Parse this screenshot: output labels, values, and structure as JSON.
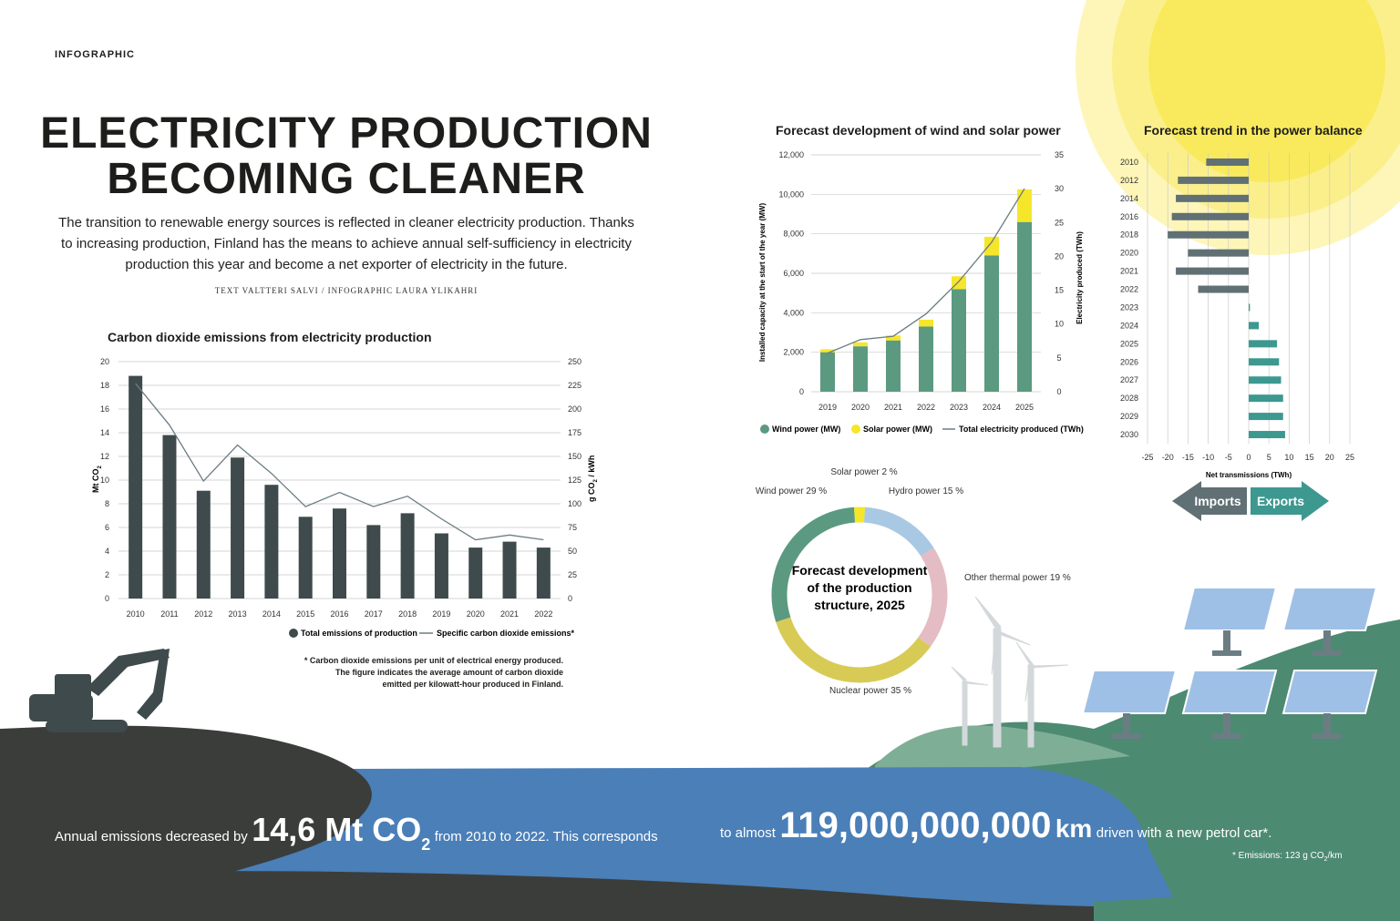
{
  "header": {
    "section_tag": "INFOGRAPHIC",
    "title_line1": "ELECTRICITY PRODUCTION",
    "title_line2": "BECOMING CLEANER",
    "intro": "The transition to renewable energy sources is reflected in cleaner electricity production. Thanks to increasing production, Finland has the means to achieve annual self-sufficiency in electricity production this year and become a net exporter of electricity in the future.",
    "credits": "TEXT VALTTERI SALVI / INFOGRAPHIC LAURA YLIKAHRI"
  },
  "colors": {
    "dark_bar": "#3e4a4b",
    "line": "#6b7d83",
    "wind": "#5b9a80",
    "solar": "#f6e629",
    "hydro": "#a9c8e4",
    "thermal": "#e3bcc4",
    "nuclear": "#d8cb55",
    "imports": "#607074",
    "exports": "#3d9890",
    "water": "#4a7fb8",
    "hill_dark": "#3b3d3b",
    "hill_green": "#4d8a72",
    "sun": "#f8ec6a"
  },
  "chart_data": [
    {
      "type": "bar",
      "title": "Carbon dioxide emissions from electricity production",
      "ylabel": "Mt CO",
      "ylabel_sub": "2",
      "y2label": "g CO",
      "y2label_sub": "2",
      "y2label_tail": "/ kWh",
      "categories": [
        "2010",
        "2011",
        "2012",
        "2013",
        "2014",
        "2015",
        "2016",
        "2017",
        "2018",
        "2019",
        "2020",
        "2021",
        "2022"
      ],
      "series": [
        {
          "name": "Total emissions of production",
          "kind": "bar",
          "axis": "left",
          "values": [
            18.8,
            13.8,
            9.1,
            11.9,
            9.6,
            6.9,
            7.6,
            6.2,
            7.2,
            5.5,
            4.3,
            4.8,
            4.3
          ]
        },
        {
          "name": "Specific carbon dioxide emissions*",
          "kind": "line",
          "axis": "right",
          "values": [
            227,
            183,
            124,
            162,
            132,
            97,
            112,
            97,
            108,
            84,
            62,
            67,
            62
          ]
        }
      ],
      "ylim": [
        0,
        20
      ],
      "yticks": [
        0,
        2,
        4,
        6,
        8,
        10,
        12,
        14,
        16,
        18,
        20
      ],
      "y2lim": [
        0,
        250
      ],
      "y2ticks": [
        0,
        25,
        50,
        75,
        100,
        125,
        150,
        175,
        200,
        225,
        250
      ],
      "grid": true,
      "legend": "bottom-right",
      "footnote": [
        "* Carbon dioxide emissions per unit of electrical energy produced.",
        "The figure indicates the average amount of carbon dioxide",
        "emitted per kilowatt-hour produced in Finland."
      ]
    },
    {
      "type": "bar",
      "title": "Forecast development of wind and solar power",
      "ylabel": "Installed capacity at the start of the year (MW)",
      "y2label": "Electricity produced (TWh)",
      "categories": [
        "2019",
        "2020",
        "2021",
        "2022",
        "2023",
        "2024",
        "2025"
      ],
      "series": [
        {
          "name": "Wind power (MW)",
          "kind": "stacked-bar",
          "axis": "left",
          "values": [
            2000,
            2300,
            2600,
            3300,
            5200,
            6900,
            8600
          ]
        },
        {
          "name": "Solar power (MW)",
          "kind": "stacked-bar",
          "axis": "left",
          "values": [
            150,
            200,
            250,
            350,
            650,
            950,
            1650
          ]
        },
        {
          "name": "Total electricity produced (TWh)",
          "kind": "line",
          "axis": "right",
          "values": [
            5.7,
            7.7,
            8.2,
            11.5,
            16.3,
            22.1,
            30
          ]
        }
      ],
      "ylim": [
        0,
        12000
      ],
      "yticks": [
        0,
        2000,
        4000,
        6000,
        8000,
        10000,
        12000
      ],
      "ytick_labels": [
        "0",
        "2,000",
        "4,000",
        "6,000",
        "8,000",
        "10,000",
        "12,000"
      ],
      "y2lim": [
        0,
        35
      ],
      "y2ticks": [
        0,
        5,
        10,
        15,
        20,
        25,
        30,
        35
      ],
      "grid": true,
      "legend": "bottom"
    },
    {
      "type": "bar",
      "orientation": "horizontal",
      "title": "Forecast trend in the power balance",
      "xlabel": "Net transmissions (TWh)",
      "categories": [
        "2010",
        "2012",
        "2014",
        "2016",
        "2018",
        "2020",
        "2021",
        "2022",
        "2023",
        "2024",
        "2025",
        "2026",
        "2027",
        "2028",
        "2029",
        "2030"
      ],
      "values": [
        -10.5,
        -17.5,
        -18,
        -19,
        -20,
        -15,
        -18,
        -12.5,
        0.3,
        2.5,
        7,
        7.5,
        8,
        8.5,
        8.5,
        9
      ],
      "xlim": [
        -25,
        25
      ],
      "xticks": [
        -25,
        -20,
        -15,
        -10,
        -5,
        0,
        5,
        10,
        15,
        20,
        25
      ],
      "grid": true,
      "arrows": {
        "left": "Imports",
        "right": "Exports"
      }
    },
    {
      "type": "pie",
      "style": "donut",
      "title": "Forecast development of the production structure, 2025",
      "center_label": [
        "Forecast development",
        "of the production",
        "structure, 2025"
      ],
      "slices": [
        {
          "name": "Solar power",
          "value": 2,
          "label": "Solar power 2 %"
        },
        {
          "name": "Hydro power",
          "value": 15,
          "label": "Hydro power 15 %"
        },
        {
          "name": "Other thermal power",
          "value": 19,
          "label": "Other thermal power 19 %"
        },
        {
          "name": "Nuclear power",
          "value": 35,
          "label": "Nuclear power 35 %"
        },
        {
          "name": "Wind power",
          "value": 29,
          "label": "Wind power 29 %"
        }
      ]
    }
  ],
  "bottom": {
    "part1": "Annual emissions decreased by",
    "big1": "14,6 Mt CO",
    "big1_sub": "2",
    "part2": "from 2010 to 2022. This corresponds",
    "part3": "to almost",
    "big2": "119,000,000,000",
    "big2_unit": "km",
    "part4": "driven with a new petrol car*.",
    "note": "* Emissions: 123 g CO",
    "note_sub": "2",
    "note_tail": "/km"
  }
}
